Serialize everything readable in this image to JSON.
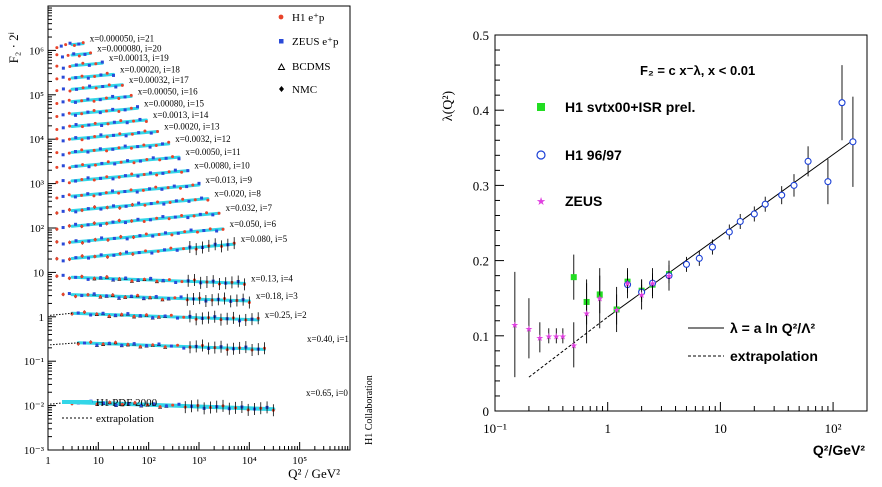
{
  "chart_data": [
    {
      "type": "scatter",
      "xlabel": "Q² / GeV²",
      "ylabel": "F₂ · 2ⁱ",
      "xscale": "log",
      "yscale": "log",
      "xlim": [
        1,
        1000000
      ],
      "ylim": [
        0.001,
        10000000
      ],
      "x_ticks": [
        {
          "v": 1,
          "label": "1"
        },
        {
          "v": 10,
          "label": "10"
        },
        {
          "v": 100,
          "label": "10²"
        },
        {
          "v": 1000,
          "label": "10³"
        },
        {
          "v": 10000,
          "label": "10⁴"
        },
        {
          "v": 100000,
          "label": "10⁵"
        }
      ],
      "y_ticks": [
        {
          "v": 0.001,
          "label": "10⁻³"
        },
        {
          "v": 0.01,
          "label": "10⁻²"
        },
        {
          "v": 0.1,
          "label": "10⁻¹"
        },
        {
          "v": 1,
          "label": "1"
        },
        {
          "v": 10,
          "label": "10"
        },
        {
          "v": 100,
          "label": "10²"
        },
        {
          "v": 1000,
          "label": "10³"
        },
        {
          "v": 10000,
          "label": "10⁴"
        },
        {
          "v": 100000,
          "label": "10⁵"
        },
        {
          "v": 1000000,
          "label": "10⁶"
        }
      ],
      "legend_top": [
        {
          "label": "H1 e⁺p",
          "marker": "dot",
          "color": "#e8432a"
        },
        {
          "label": "ZEUS e⁺p",
          "marker": "square",
          "color": "#2a4ad8"
        },
        {
          "label": "BCDMS",
          "marker": "triangle",
          "color": "#000000"
        },
        {
          "label": "NMC",
          "marker": "diamond",
          "color": "#000000"
        }
      ],
      "legend_bottom": [
        {
          "label": "H1 PDF 2000",
          "style": "band",
          "color": "#33d6e8"
        },
        {
          "label": "extrapolation",
          "style": "dotted",
          "color": "#000000"
        }
      ],
      "side_label": "H1 Collaboration",
      "series": [
        {
          "label": "x=0.000050, i=21",
          "i": 21,
          "F2": 0.6,
          "q2_min": 1.5,
          "q2_max": 5.0
        },
        {
          "label": "x=0.000080, i=20",
          "i": 20,
          "F2": 0.7,
          "q2_min": 1.5,
          "q2_max": 7.0
        },
        {
          "label": "x=0.00013, i=19",
          "i": 19,
          "F2": 0.8,
          "q2_min": 1.5,
          "q2_max": 12.0
        },
        {
          "label": "x=0.00020, i=18",
          "i": 18,
          "F2": 0.85,
          "q2_min": 1.5,
          "q2_max": 20.0
        },
        {
          "label": "x=0.00032, i=17",
          "i": 17,
          "F2": 0.95,
          "q2_min": 1.5,
          "q2_max": 30.0
        },
        {
          "label": "x=0.00050, i=16",
          "i": 16,
          "F2": 1.0,
          "q2_min": 1.5,
          "q2_max": 45.0
        },
        {
          "label": "x=0.00080, i=15",
          "i": 15,
          "F2": 1.05,
          "q2_min": 1.5,
          "q2_max": 60.0
        },
        {
          "label": "x=0.0013, i=14",
          "i": 14,
          "F2": 1.1,
          "q2_min": 1.5,
          "q2_max": 90.0
        },
        {
          "label": "x=0.0020, i=13",
          "i": 13,
          "F2": 1.15,
          "q2_min": 1.5,
          "q2_max": 150.0
        },
        {
          "label": "x=0.0032, i=12",
          "i": 12,
          "F2": 1.15,
          "q2_min": 1.5,
          "q2_max": 250.0
        },
        {
          "label": "x=0.0050, i=11",
          "i": 11,
          "F2": 1.1,
          "q2_min": 1.5,
          "q2_max": 400.0
        },
        {
          "label": "x=0.0080, i=10",
          "i": 10,
          "F2": 1.05,
          "q2_min": 1.5,
          "q2_max": 600.0
        },
        {
          "label": "x=0.013, i=9",
          "i": 9,
          "F2": 0.95,
          "q2_min": 1.5,
          "q2_max": 1000.0
        },
        {
          "label": "x=0.020, i=8",
          "i": 8,
          "F2": 0.9,
          "q2_min": 1.5,
          "q2_max": 1500.0
        },
        {
          "label": "x=0.032, i=7",
          "i": 7,
          "F2": 0.8,
          "q2_min": 1.5,
          "q2_max": 2500.0
        },
        {
          "label": "x=0.050, i=6",
          "i": 6,
          "F2": 0.7,
          "q2_min": 1.5,
          "q2_max": 3000.0
        },
        {
          "label": "x=0.080, i=5",
          "i": 5,
          "F2": 0.6,
          "q2_min": 1.5,
          "q2_max": 5000.0
        },
        {
          "label": "x=0.13, i=4",
          "i": 4,
          "F2": 0.5,
          "q2_min": 1.5,
          "q2_max": 8000.0
        },
        {
          "label": "x=0.18, i=3",
          "i": 3,
          "F2": 0.4,
          "q2_min": 2.0,
          "q2_max": 10000.0
        },
        {
          "label": "x=0.25, i=2",
          "i": 2,
          "F2": 0.3,
          "q2_min": 3.0,
          "q2_max": 15000.0
        },
        {
          "label": "x=0.40, i=1",
          "i": 1,
          "F2": 0.13,
          "q2_min": 4.0,
          "q2_max": 20000.0
        },
        {
          "label": "x=0.65, i=0",
          "i": 0,
          "F2": 0.012,
          "q2_min": 3.0,
          "q2_max": 30000.0
        }
      ]
    },
    {
      "type": "scatter",
      "xlabel": "Q²/GeV²",
      "ylabel": "λ(Q²)",
      "xscale": "log",
      "xlim": [
        0.1,
        200
      ],
      "ylim": [
        0,
        0.5
      ],
      "x_ticks": [
        {
          "v": 0.1,
          "label": "10⁻¹"
        },
        {
          "v": 1,
          "label": "1"
        },
        {
          "v": 10,
          "label": "10"
        },
        {
          "v": 100,
          "label": "10²"
        }
      ],
      "y_ticks": [
        {
          "v": 0,
          "label": "0"
        },
        {
          "v": 0.1,
          "label": "0.1"
        },
        {
          "v": 0.2,
          "label": "0.2"
        },
        {
          "v": 0.3,
          "label": "0.3"
        },
        {
          "v": 0.4,
          "label": "0.4"
        },
        {
          "v": 0.5,
          "label": "0.5"
        }
      ],
      "annotation": "F₂ = c x⁻λ,  x < 0.01",
      "series": [
        {
          "name": "H1 svtx00+ISR prel.",
          "marker": "square",
          "color": "#22dd22",
          "points": [
            [
              0.5,
              0.178,
              0.03
            ],
            [
              0.65,
              0.145,
              0.03
            ],
            [
              0.85,
              0.155,
              0.025
            ],
            [
              1.2,
              0.135,
              0.02
            ],
            [
              1.5,
              0.172,
              0.015
            ],
            [
              2.0,
              0.16,
              0.015
            ],
            [
              2.5,
              0.168,
              0.015
            ],
            [
              3.5,
              0.182,
              0.012
            ]
          ]
        },
        {
          "name": "H1 96/97",
          "marker": "open-circle",
          "color": "#1a3fd6",
          "points": [
            [
              1.5,
              0.168,
              0.01
            ],
            [
              2.0,
              0.158,
              0.01
            ],
            [
              2.5,
              0.17,
              0.01
            ],
            [
              3.5,
              0.18,
              0.01
            ],
            [
              5.0,
              0.195,
              0.01
            ],
            [
              6.5,
              0.203,
              0.01
            ],
            [
              8.5,
              0.218,
              0.01
            ],
            [
              12.0,
              0.238,
              0.01
            ],
            [
              15.0,
              0.252,
              0.01
            ],
            [
              20.0,
              0.262,
              0.01
            ],
            [
              25.0,
              0.275,
              0.01
            ],
            [
              35.0,
              0.287,
              0.012
            ],
            [
              45.0,
              0.3,
              0.015
            ],
            [
              60.0,
              0.332,
              0.02
            ],
            [
              90.0,
              0.305,
              0.03
            ],
            [
              120.0,
              0.41,
              0.05
            ],
            [
              150.0,
              0.358,
              0.06
            ]
          ]
        },
        {
          "name": "ZEUS",
          "marker": "star",
          "color": "#e040e0",
          "points": [
            [
              0.15,
              0.115,
              0.07
            ],
            [
              0.2,
              0.11,
              0.04
            ],
            [
              0.25,
              0.098,
              0.02
            ],
            [
              0.3,
              0.1,
              0.01
            ],
            [
              0.35,
              0.1,
              0.01
            ],
            [
              0.4,
              0.1,
              0.01
            ],
            [
              0.5,
              0.088,
              0.03
            ],
            [
              0.65,
              0.13,
              0.04
            ],
            [
              0.85,
              0.15,
              0.04
            ],
            [
              1.2,
              0.135,
              0.03
            ],
            [
              1.5,
              0.17,
              0.02
            ],
            [
              2.0,
              0.155,
              0.02
            ],
            [
              2.5,
              0.17,
              0.02
            ],
            [
              3.5,
              0.18,
              0.02
            ]
          ]
        }
      ],
      "fit_line": {
        "label": "λ = a ln Q²/Λ²",
        "from": [
          1.0,
          0.125
        ],
        "to": [
          150.0,
          0.36
        ]
      },
      "extrapolation_line": {
        "label": "extrapolation",
        "from": [
          0.2,
          0.045
        ],
        "to": [
          1.0,
          0.125
        ]
      }
    }
  ]
}
